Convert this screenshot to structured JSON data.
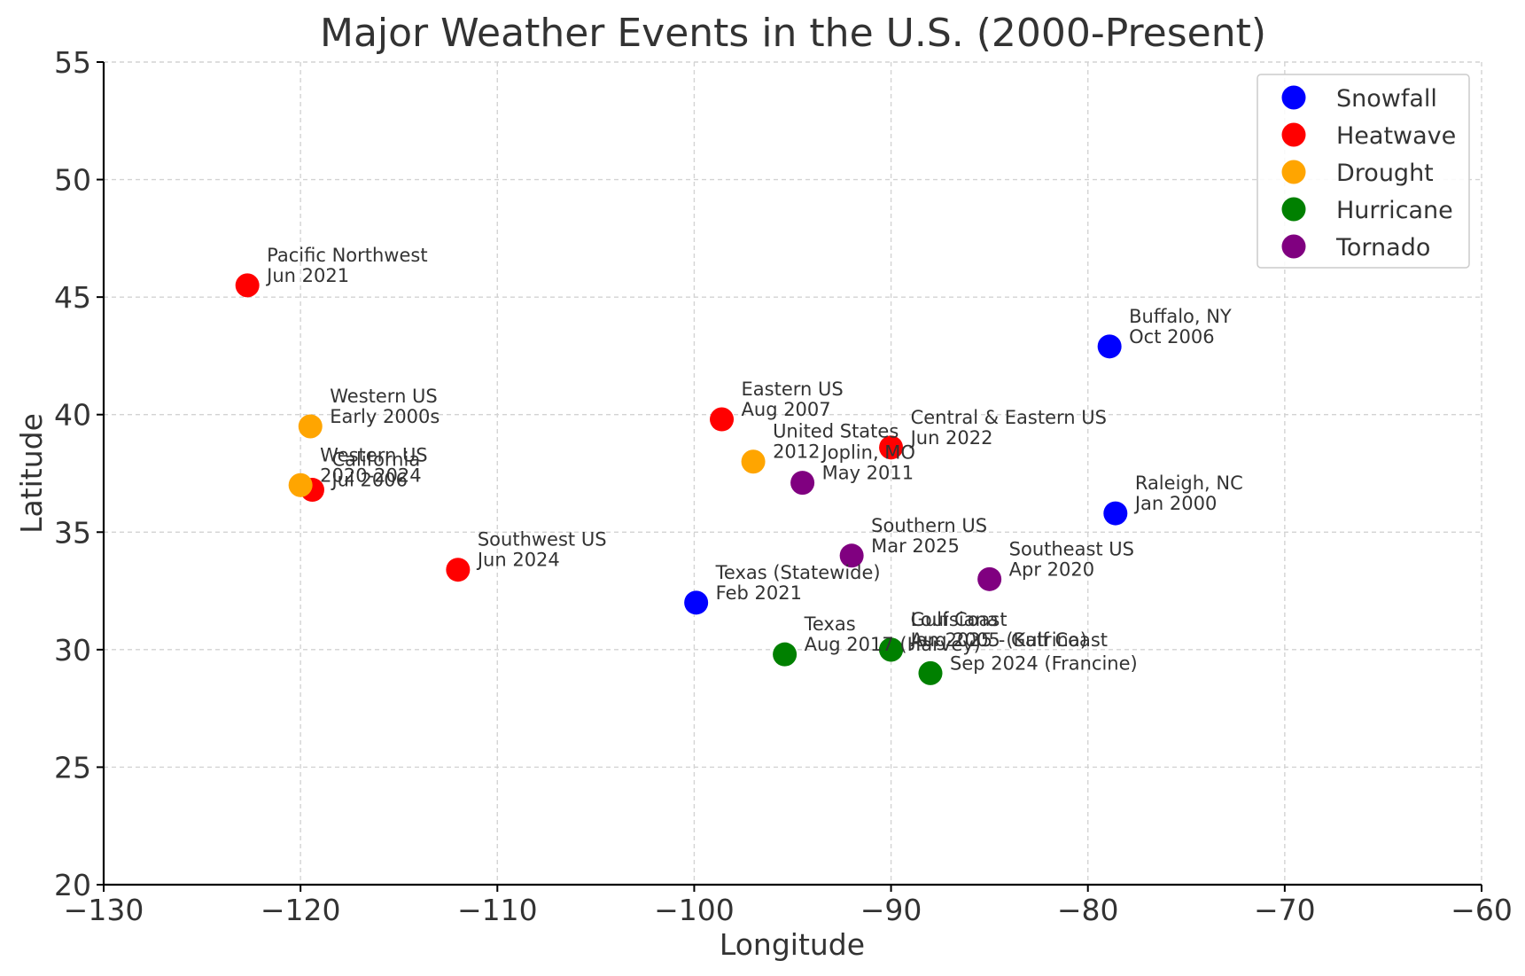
{
  "chart_data": {
    "type": "scatter",
    "title": "Major Weather Events in the U.S. (2000-Present)",
    "xlabel": "Longitude",
    "ylabel": "Latitude",
    "xlim": [
      -130,
      -60
    ],
    "ylim": [
      20,
      55
    ],
    "xticks": [
      -130,
      -120,
      -110,
      -100,
      -90,
      -80,
      -70,
      -60
    ],
    "yticks": [
      20,
      25,
      30,
      35,
      40,
      45,
      50,
      55
    ],
    "xtick_labels": [
      "−130",
      "−120",
      "−110",
      "−100",
      "−90",
      "−80",
      "−70",
      "−60"
    ],
    "ytick_labels": [
      "20",
      "25",
      "30",
      "35",
      "40",
      "45",
      "50",
      "55"
    ],
    "grid": true,
    "legend_position": "top-right",
    "series": [
      {
        "name": "Snowfall",
        "color": "#0000ff",
        "points": [
          {
            "x": -78.9,
            "y": 42.9,
            "line1": "Buffalo, NY",
            "line2": "Oct 2006"
          },
          {
            "x": -78.6,
            "y": 35.8,
            "line1": "Raleigh, NC",
            "line2": "Jan 2000"
          },
          {
            "x": -99.9,
            "y": 32.0,
            "line1": "Texas (Statewide)",
            "line2": "Feb 2021"
          }
        ]
      },
      {
        "name": "Heatwave",
        "color": "#ff0000",
        "points": [
          {
            "x": -122.7,
            "y": 45.5,
            "line1": "Pacific Northwest",
            "line2": "Jun 2021"
          },
          {
            "x": -98.6,
            "y": 39.8,
            "line1": "Eastern US",
            "line2": "Aug 2007"
          },
          {
            "x": -90.0,
            "y": 38.6,
            "line1": "Central & Eastern US",
            "line2": "Jun 2022"
          },
          {
            "x": -119.4,
            "y": 36.8,
            "line1": "California",
            "line2": "Jul 2006"
          },
          {
            "x": -112.0,
            "y": 33.4,
            "line1": "Southwest US",
            "line2": "Jun 2024"
          }
        ]
      },
      {
        "name": "Drought",
        "color": "#ffa500",
        "points": [
          {
            "x": -119.5,
            "y": 39.5,
            "line1": "Western US",
            "line2": "Early 2000s"
          },
          {
            "x": -120.0,
            "y": 37.0,
            "line1": "Western US",
            "line2": "2020-2024"
          },
          {
            "x": -97.0,
            "y": 38.0,
            "line1": "United States",
            "line2": "2012"
          }
        ]
      },
      {
        "name": "Hurricane",
        "color": "#008000",
        "points": [
          {
            "x": -95.4,
            "y": 29.8,
            "line1": "Texas",
            "line2": "Aug 2017 (Harvey)"
          },
          {
            "x": -90.0,
            "y": 30.0,
            "line1": "Louisiana",
            "line2": "Aug 2005 (Katrina)"
          },
          {
            "x": -90.0,
            "y": 30.0,
            "line1": "Gulf Coast",
            "line2": "Jan 2025 - Gulf Coast"
          },
          {
            "x": -88.0,
            "y": 29.0,
            "line1": "",
            "line2": "Sep 2024 (Francine)"
          }
        ]
      },
      {
        "name": "Tornado",
        "color": "#800080",
        "points": [
          {
            "x": -94.5,
            "y": 37.1,
            "line1": "Joplin, MO",
            "line2": "May 2011"
          },
          {
            "x": -92.0,
            "y": 34.0,
            "line1": "Southern US",
            "line2": "Mar 2025"
          },
          {
            "x": -85.0,
            "y": 33.0,
            "line1": "Southeast US",
            "line2": "Apr 2020"
          }
        ]
      }
    ]
  }
}
